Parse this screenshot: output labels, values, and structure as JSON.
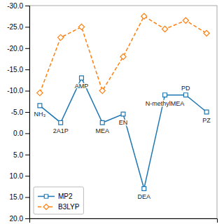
{
  "chart_data": {
    "type": "line",
    "x": [
      0,
      1,
      2,
      3,
      4,
      5,
      6,
      7,
      8
    ],
    "xlim": [
      -0.5,
      8.5
    ],
    "ylim": [
      20.0,
      -30.0
    ],
    "yticks": [
      {
        "value": 20.0,
        "label": "20.0"
      },
      {
        "value": 15.0,
        "label": "15.0"
      },
      {
        "value": 10.0,
        "label": "10.0"
      },
      {
        "value": 5.0,
        "label": "5.0"
      },
      {
        "value": 0.0,
        "label": "0.0"
      },
      {
        "value": -5.0,
        "label": "-5.0"
      },
      {
        "value": -10.0,
        "label": "-10.0"
      },
      {
        "value": -15.0,
        "label": "-15.0"
      },
      {
        "value": -20.0,
        "label": "-20.0"
      },
      {
        "value": -25.0,
        "label": "-25.0"
      },
      {
        "value": -30.0,
        "label": "-30.0"
      }
    ],
    "series": [
      {
        "name": "MP2",
        "values": [
          -6.5,
          -2.5,
          -13.0,
          -2.5,
          -4.5,
          13.0,
          -9.0,
          -9.0,
          -5.0
        ],
        "marker": "square",
        "line_style": "solid"
      },
      {
        "name": "B3LYP",
        "values": [
          -9.5,
          -22.5,
          -25.0,
          -10.0,
          -18.0,
          -27.5,
          -24.5,
          -26.5,
          -23.5
        ],
        "marker": "diamond",
        "line_style": "dashed"
      }
    ],
    "annotations": [
      {
        "text": "NH₃",
        "x": 0,
        "y": -6.5
      },
      {
        "text": "2A1P",
        "x": 1,
        "y": -2.5
      },
      {
        "text": "AMP",
        "x": 2,
        "y": -13.0
      },
      {
        "text": "MEA",
        "x": 3,
        "y": -2.5
      },
      {
        "text": "EN",
        "x": 4,
        "y": -4.5
      },
      {
        "text": "DEA",
        "x": 5,
        "y": 13.0
      },
      {
        "text": "N-methylMEA",
        "x": 6,
        "y": -9.0
      },
      {
        "text": "PD",
        "x": 7,
        "y": -9.0
      },
      {
        "text": "PZ",
        "x": 8,
        "y": -5.0
      }
    ],
    "legend": "lower left",
    "grid": false,
    "tick_labels": "y"
  }
}
